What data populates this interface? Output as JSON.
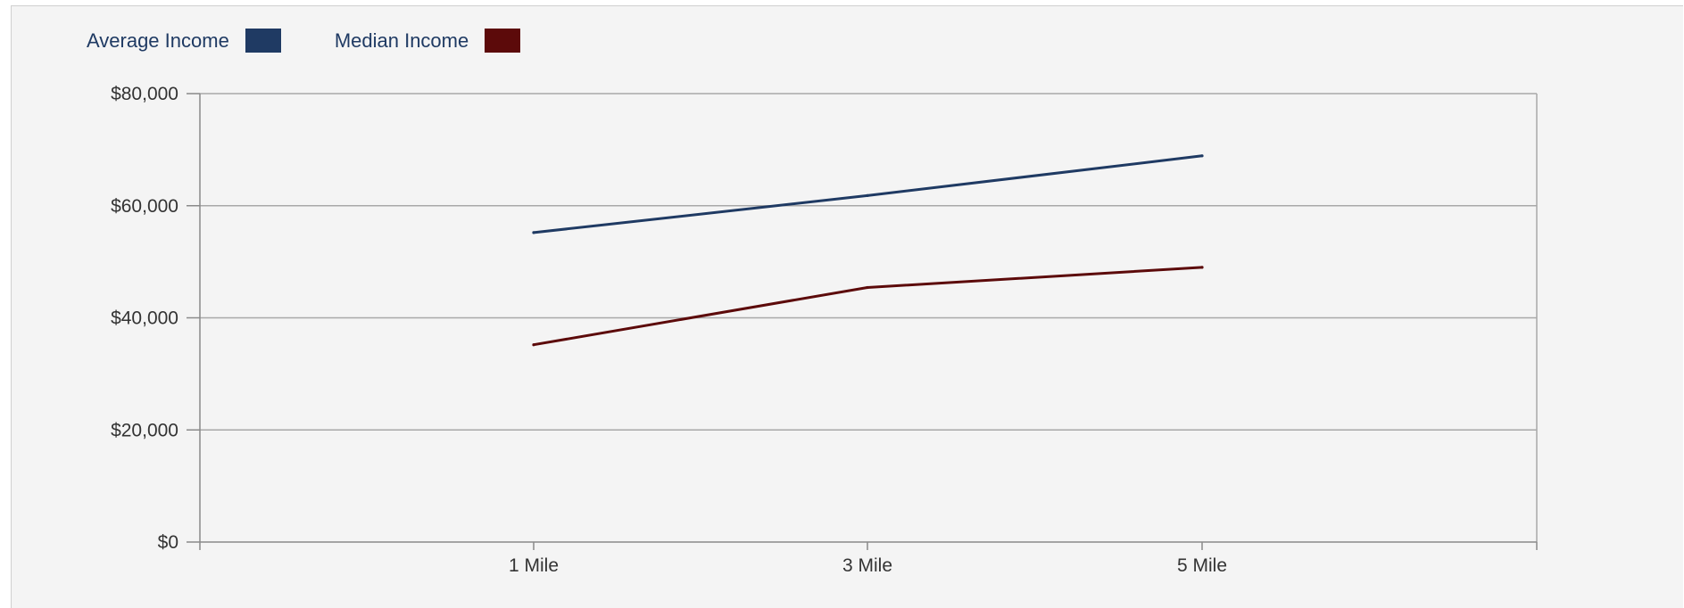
{
  "chart_data": {
    "type": "line",
    "categories": [
      "1 Mile",
      "3 Mile",
      "5 Mile"
    ],
    "series": [
      {
        "name": "Average Income",
        "color": "#1f3a63",
        "values": [
          55200,
          61800,
          68900
        ]
      },
      {
        "name": "Median Income",
        "color": "#5c0a0a",
        "values": [
          35200,
          45400,
          49000
        ]
      }
    ],
    "y_ticks": [
      "$0",
      "$20,000",
      "$40,000",
      "$60,000",
      "$80,000"
    ],
    "ylim": [
      0,
      80000
    ],
    "legend_position": "top-left",
    "grid": true
  }
}
